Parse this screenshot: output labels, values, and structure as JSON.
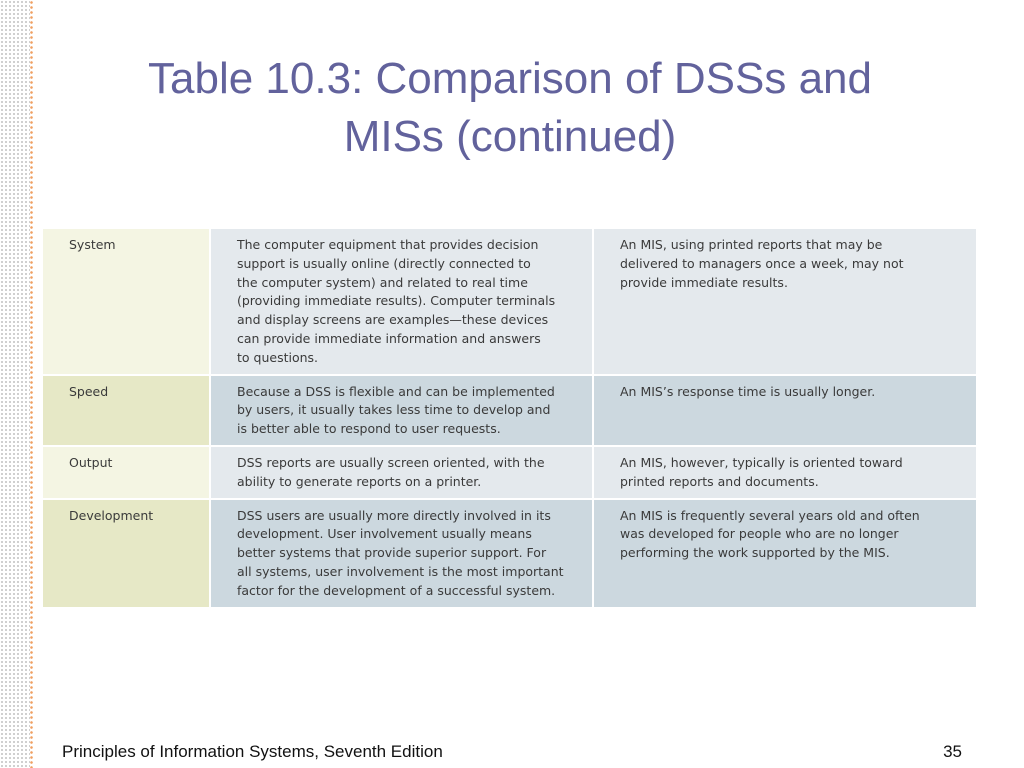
{
  "slide": {
    "title_line1": "Table 10.3: Comparison of DSSs and",
    "title_line2": "MISs (continued)",
    "footer": "Principles of Information Systems, Seventh Edition",
    "page_number": "35"
  },
  "table": {
    "rows": [
      {
        "label": "System",
        "dss_lines": [
          "The computer equipment that provides decision",
          "support is usually online (directly connected to",
          "the computer system) and related to real time",
          "(providing immediate results). Computer terminals",
          "and display screens are examples—these devices",
          "can provide immediate information and answers",
          "to questions."
        ],
        "mis_lines": [
          "An MIS, using printed reports that may be",
          "delivered to managers once a week, may not",
          "provide immediate results."
        ]
      },
      {
        "label": "Speed",
        "dss_lines": [
          "Because a DSS is flexible and can be implemented",
          "by users, it usually takes less time to develop and",
          "is better able to respond to user requests."
        ],
        "mis_lines": [
          "An MIS’s response time is usually longer."
        ]
      },
      {
        "label": "Output",
        "dss_lines": [
          "DSS reports are usually screen oriented, with the",
          "ability to generate reports on a printer."
        ],
        "mis_lines": [
          "An MIS, however, typically is oriented toward",
          "printed reports and documents."
        ]
      },
      {
        "label": "Development",
        "dss_lines": [
          "DSS users are usually more directly involved in its",
          "development. User involvement usually means",
          "better systems that provide superior support. For",
          "all systems, user involvement is the most important",
          "factor for the development of a successful system."
        ],
        "mis_lines": [
          "An MIS is frequently several years old and often",
          "was developed for people who are no longer",
          "performing the work supported by the MIS."
        ]
      }
    ]
  },
  "colors": {
    "title": "#62629c",
    "label_light": "#f4f5e3",
    "label_dark": "#e6e8c6",
    "cell_light": "#e4e9ed",
    "cell_dark": "#ccd8df",
    "dots_orange": "#f0a062"
  }
}
